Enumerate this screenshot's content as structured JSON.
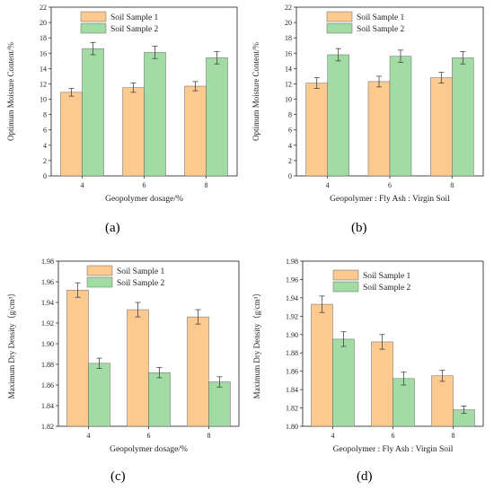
{
  "colors": {
    "sample1": "#fcc98f",
    "sample2": "#a3dba4",
    "axis": "#333333",
    "error": "#444444"
  },
  "panels": [
    {
      "label": "(a)"
    },
    {
      "label": "(b)"
    },
    {
      "label": "(c)"
    },
    {
      "label": "(d)"
    }
  ],
  "chart_data": [
    {
      "type": "bar",
      "panel": "(a)",
      "categories": [
        "4",
        "6",
        "8"
      ],
      "xlabel": "Geopolymer dosage/%",
      "ylabel": "Optimum Moisture Content/%",
      "ylim": [
        0,
        22
      ],
      "yticks": [
        "0",
        "2",
        "4",
        "6",
        "8",
        "10",
        "12",
        "14",
        "16",
        "18",
        "20",
        "22"
      ],
      "legend_position": "top-center",
      "series": [
        {
          "name": "Soil Sample 1",
          "values": [
            10.9,
            11.5,
            11.7
          ],
          "errors": [
            0.5,
            0.6,
            0.6
          ]
        },
        {
          "name": "Soil Sample 2",
          "values": [
            16.6,
            16.1,
            15.4
          ],
          "errors": [
            0.8,
            0.8,
            0.8
          ]
        }
      ]
    },
    {
      "type": "bar",
      "panel": "(b)",
      "categories": [
        "4",
        "6",
        "8"
      ],
      "xlabel": "Geopolymer : Fly Ash : Virgin Soil",
      "ylabel": "Optimum Moisture Content/%",
      "ylim": [
        0,
        22
      ],
      "yticks": [
        "0",
        "2",
        "4",
        "6",
        "8",
        "10",
        "12",
        "14",
        "16",
        "18",
        "20",
        "22"
      ],
      "legend_position": "top-center",
      "series": [
        {
          "name": "Soil Sample 1",
          "values": [
            12.1,
            12.3,
            12.8
          ],
          "errors": [
            0.7,
            0.7,
            0.7
          ]
        },
        {
          "name": "Soil Sample 2",
          "values": [
            15.8,
            15.6,
            15.4
          ],
          "errors": [
            0.8,
            0.8,
            0.8
          ]
        }
      ]
    },
    {
      "type": "bar",
      "panel": "(c)",
      "categories": [
        "4",
        "6",
        "8"
      ],
      "xlabel": "Geopolymer dosage/%",
      "ylabel": "Maximum Dry Density（g/cm³）",
      "ylim": [
        1.82,
        1.98
      ],
      "yticks": [
        "1.82",
        "1.84",
        "1.86",
        "1.88",
        "1.90",
        "1.92",
        "1.94",
        "1.96",
        "1.98"
      ],
      "legend_position": "top-center",
      "series": [
        {
          "name": "Soil Sample 1",
          "values": [
            1.952,
            1.933,
            1.926
          ],
          "errors": [
            0.007,
            0.007,
            0.007
          ]
        },
        {
          "name": "Soil Sample 2",
          "values": [
            1.881,
            1.872,
            1.863
          ],
          "errors": [
            0.005,
            0.005,
            0.005
          ]
        }
      ]
    },
    {
      "type": "bar",
      "panel": "(d)",
      "categories": [
        "4",
        "6",
        "8"
      ],
      "xlabel": "Geopolymer : Fly Ash : Virgin Soil",
      "ylabel": "Maximum Dry Density（g/cm³）",
      "ylim": [
        1.8,
        1.98
      ],
      "yticks": [
        "1.80",
        "1.82",
        "1.84",
        "1.86",
        "1.88",
        "1.90",
        "1.92",
        "1.94",
        "1.96",
        "1.98"
      ],
      "legend_position": "top-center",
      "series": [
        {
          "name": "Soil Sample 1",
          "values": [
            1.933,
            1.892,
            1.855
          ],
          "errors": [
            0.009,
            0.008,
            0.006
          ]
        },
        {
          "name": "Soil Sample 2",
          "values": [
            1.895,
            1.852,
            1.818
          ],
          "errors": [
            0.008,
            0.007,
            0.004
          ]
        }
      ]
    }
  ]
}
